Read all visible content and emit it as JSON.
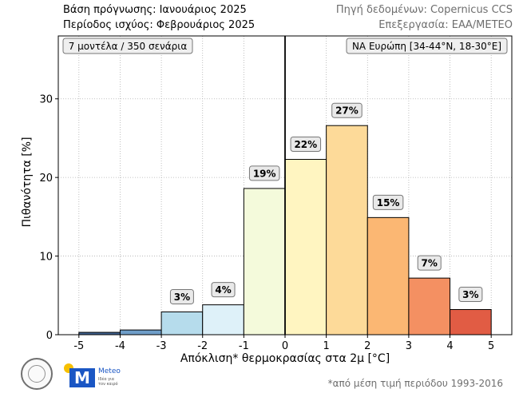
{
  "header": {
    "left_line1": "Βάση πρόγνωσης: Ιανουάριος 2025",
    "left_line2": "Περίοδος ισχύος: Φεβρουάριος 2025",
    "right_line1": "Πηγή δεδομένων: Copernicus CCS",
    "right_line2": "Επεξεργασία: ΕΑΑ/ΜΕΤΕΟ"
  },
  "annotations": {
    "models_box": "7 μοντέλα / 350 σενάρια",
    "region_box": "ΝΑ Ευρώπη [34-44°N, 18-30°E]"
  },
  "footnote": "*από μέση τιμή περιόδου 1993-2016",
  "logos": {
    "meteo_text": "Meteo",
    "meteo_letter": "M",
    "meteo_tagline": "Ιδέα για τον καιρό"
  },
  "chart_data": {
    "type": "bar",
    "xlabel": "Απόκλιση* θερμοκρασίας στα 2μ [°C]",
    "ylabel": "Πιθανότητα [%]",
    "xlim": [
      -5.5,
      5.5
    ],
    "ylim": [
      0,
      38
    ],
    "grid": true,
    "x_ticks": [
      -5,
      -4,
      -3,
      -2,
      -1,
      0,
      1,
      2,
      3,
      4,
      5
    ],
    "x_tick_labels": [
      "-5",
      "-4",
      "-3",
      "-2",
      "-1",
      "0",
      "1",
      "2",
      "3",
      "4",
      "5"
    ],
    "y_ticks": [
      0,
      10,
      20,
      30
    ],
    "y_tick_labels": [
      "0",
      "10",
      "20",
      "30"
    ],
    "reference_line_x": 0,
    "bins": [
      {
        "from": -5,
        "to": -4,
        "value": 0.3,
        "label": "",
        "color": "#3f628f"
      },
      {
        "from": -4,
        "to": -3,
        "value": 0.6,
        "label": "",
        "color": "#6f9ec9"
      },
      {
        "from": -3,
        "to": -2,
        "value": 2.9,
        "label": "3%",
        "color": "#b6dcec"
      },
      {
        "from": -2,
        "to": -1,
        "value": 3.8,
        "label": "4%",
        "color": "#def1f9"
      },
      {
        "from": -1,
        "to": 0,
        "value": 18.6,
        "label": "19%",
        "color": "#f4fadb"
      },
      {
        "from": 0,
        "to": 1,
        "value": 22.3,
        "label": "22%",
        "color": "#fff5c1"
      },
      {
        "from": 1,
        "to": 2,
        "value": 26.6,
        "label": "27%",
        "color": "#fdda99"
      },
      {
        "from": 2,
        "to": 3,
        "value": 14.9,
        "label": "15%",
        "color": "#fbb773"
      },
      {
        "from": 3,
        "to": 4,
        "value": 7.2,
        "label": "7%",
        "color": "#f49062"
      },
      {
        "from": 4,
        "to": 5,
        "value": 3.2,
        "label": "3%",
        "color": "#e15c44"
      }
    ]
  }
}
